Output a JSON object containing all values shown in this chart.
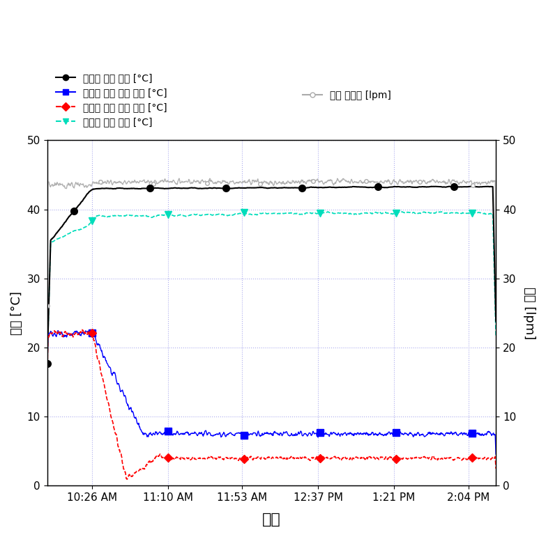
{
  "title": "",
  "xlabel": "시간",
  "ylabel_left": "온도 [°C]",
  "ylabel_right": "유량 [lpm]",
  "xtick_labels": [
    "10:26 AM",
    "11:10 AM",
    "11:53 AM",
    "12:37 PM",
    "1:21 PM",
    "2:04 PM"
  ],
  "ylim_left": [
    0,
    50
  ],
  "ylim_right": [
    0,
    50
  ],
  "yticks": [
    0,
    10,
    20,
    30,
    40,
    50
  ],
  "background_color": "#ffffff",
  "plot_background": "#ffffff",
  "grid_color": "#aaaaee",
  "legend_entries": [
    "응측기 출구 수온 [°C]",
    "증발기 입구 공기 온도 [°C]",
    "증발기 출구 공기 온도 [°C]",
    "응취기 입구 수온 [°C]",
    "온수 순환량 [lpm]"
  ]
}
